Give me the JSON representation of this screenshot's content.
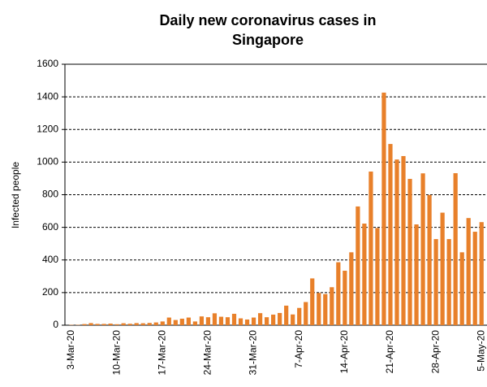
{
  "chart_data": {
    "type": "bar",
    "title_lines": [
      "Daily new coronavirus cases in",
      "Singapore"
    ],
    "y_label": "Infected people",
    "categories": [
      "3-Mar-20",
      null,
      null,
      null,
      null,
      null,
      null,
      "10-Mar-20",
      null,
      null,
      null,
      null,
      null,
      null,
      "17-Mar-20",
      null,
      null,
      null,
      null,
      null,
      null,
      "24-Mar-20",
      null,
      null,
      null,
      null,
      null,
      null,
      "31-Mar-20",
      null,
      null,
      null,
      null,
      null,
      null,
      "7-Apr-20",
      null,
      null,
      null,
      null,
      null,
      null,
      "14-Apr-20",
      null,
      null,
      null,
      null,
      null,
      null,
      "21-Apr-20",
      null,
      null,
      null,
      null,
      null,
      null,
      "28-Apr-20",
      null,
      null,
      null,
      null,
      null,
      null,
      "5-May-20"
    ],
    "values": [
      2,
      2,
      7,
      13,
      8,
      8,
      10,
      6,
      12,
      9,
      13,
      12,
      14,
      17,
      23,
      47,
      32,
      40,
      47,
      23,
      54,
      49,
      73,
      52,
      49,
      70,
      42,
      35,
      47,
      74,
      49,
      65,
      75,
      120,
      66,
      106,
      142,
      287,
      198,
      191,
      233,
      386,
      334,
      447,
      728,
      623,
      942,
      596,
      1426,
      1111,
      1016,
      1037,
      897,
      618,
      931,
      799,
      528,
      690,
      528,
      932,
      447,
      657,
      573,
      632
    ],
    "color": "#e8802a",
    "ylim": [
      0,
      1600
    ],
    "yticks": [
      0,
      200,
      400,
      600,
      800,
      1000,
      1200,
      1400,
      1600
    ],
    "grid": true
  }
}
